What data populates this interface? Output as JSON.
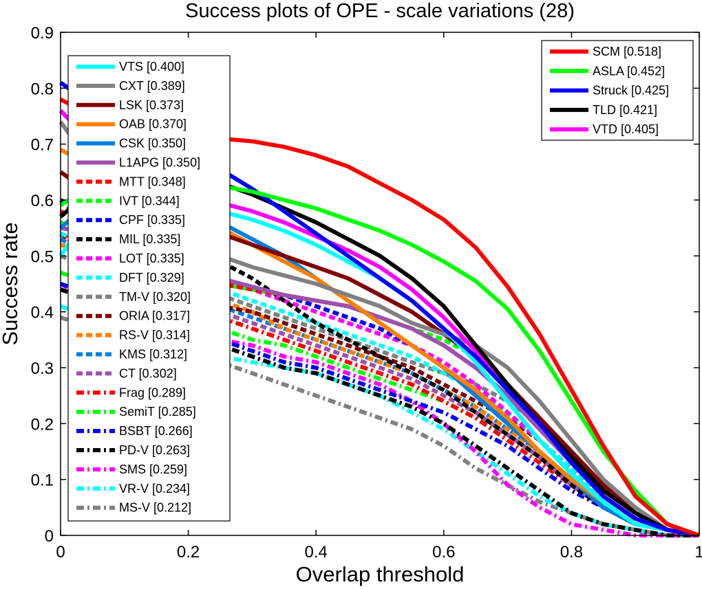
{
  "chart_data": {
    "type": "line",
    "title": "Success plots of OPE - scale variations (28)",
    "xlabel": "Overlap threshold",
    "ylabel": "Success rate",
    "xlim": [
      0,
      1
    ],
    "ylim": [
      0,
      0.9
    ],
    "xticks": [
      "0",
      "0.2",
      "0.4",
      "0.6",
      "0.8",
      "1"
    ],
    "yticks": [
      "0",
      "0.1",
      "0.2",
      "0.3",
      "0.4",
      "0.5",
      "0.6",
      "0.7",
      "0.8",
      "0.9"
    ],
    "x": [
      0,
      0.05,
      0.1,
      0.15,
      0.2,
      0.25,
      0.3,
      0.35,
      0.4,
      0.45,
      0.5,
      0.55,
      0.6,
      0.65,
      0.7,
      0.75,
      0.8,
      0.85,
      0.9,
      0.95,
      1
    ],
    "grid": false,
    "legends": [
      {
        "placement": "top-right",
        "entries": [
          "SCM [0.518]",
          "ASLA [0.452]",
          "Struck [0.425]",
          "TLD [0.421]",
          "VTD [0.405]"
        ]
      },
      {
        "placement": "left",
        "entries": [
          "VTS [0.400]",
          "CXT [0.389]",
          "LSK [0.373]",
          "OAB [0.370]",
          "CSK [0.350]",
          "L1APG [0.350]",
          "MTT [0.348]",
          "IVT [0.344]",
          "CPF [0.335]",
          "MIL [0.335]",
          "LOT [0.335]",
          "DFT [0.329]",
          "TM-V [0.320]",
          "ORIA [0.317]",
          "RS-V [0.314]",
          "KMS [0.312]",
          "CT [0.302]",
          "Frag [0.289]",
          "SemiT [0.285]",
          "BSBT [0.266]",
          "PD-V [0.263]",
          "SMS [0.259]",
          "VR-V [0.234]",
          "MS-V [0.212]"
        ]
      }
    ],
    "series": [
      {
        "name": "SCM [0.518]",
        "color": "#ff0000",
        "style": "solid",
        "values": [
          0.78,
          0.75,
          0.73,
          0.72,
          0.715,
          0.71,
          0.705,
          0.695,
          0.68,
          0.66,
          0.63,
          0.6,
          0.565,
          0.515,
          0.445,
          0.36,
          0.26,
          0.16,
          0.07,
          0.02,
          0.0
        ]
      },
      {
        "name": "ASLA [0.452]",
        "color": "#00ff00",
        "style": "solid",
        "values": [
          0.59,
          0.63,
          0.64,
          0.635,
          0.63,
          0.625,
          0.615,
          0.6,
          0.585,
          0.565,
          0.545,
          0.52,
          0.49,
          0.455,
          0.405,
          0.33,
          0.24,
          0.15,
          0.08,
          0.02,
          0.0
        ]
      },
      {
        "name": "Struck [0.425]",
        "color": "#0000ff",
        "style": "solid",
        "values": [
          0.81,
          0.77,
          0.74,
          0.71,
          0.68,
          0.655,
          0.62,
          0.58,
          0.54,
          0.5,
          0.46,
          0.42,
          0.37,
          0.32,
          0.26,
          0.2,
          0.13,
          0.07,
          0.03,
          0.01,
          0.0
        ]
      },
      {
        "name": "TLD [0.421]",
        "color": "#000000",
        "style": "solid",
        "values": [
          0.57,
          0.62,
          0.64,
          0.645,
          0.64,
          0.63,
          0.61,
          0.585,
          0.56,
          0.53,
          0.5,
          0.46,
          0.41,
          0.34,
          0.27,
          0.2,
          0.14,
          0.08,
          0.04,
          0.01,
          0.0
        ]
      },
      {
        "name": "VTD [0.405]",
        "color": "#ff00ff",
        "style": "solid",
        "values": [
          0.76,
          0.7,
          0.66,
          0.63,
          0.61,
          0.595,
          0.58,
          0.56,
          0.535,
          0.51,
          0.48,
          0.44,
          0.39,
          0.33,
          0.27,
          0.2,
          0.13,
          0.07,
          0.03,
          0.01,
          0.0
        ]
      },
      {
        "name": "VTS [0.400]",
        "color": "#00ffff",
        "style": "solid",
        "values": [
          0.5,
          0.58,
          0.6,
          0.6,
          0.595,
          0.58,
          0.565,
          0.545,
          0.52,
          0.49,
          0.46,
          0.42,
          0.37,
          0.31,
          0.24,
          0.17,
          0.11,
          0.06,
          0.02,
          0.01,
          0.0
        ]
      },
      {
        "name": "CXT [0.389]",
        "color": "#808080",
        "style": "solid",
        "values": [
          0.74,
          0.66,
          0.6,
          0.56,
          0.53,
          0.5,
          0.48,
          0.465,
          0.45,
          0.43,
          0.41,
          0.38,
          0.36,
          0.34,
          0.3,
          0.24,
          0.17,
          0.1,
          0.05,
          0.01,
          0.0
        ]
      },
      {
        "name": "LSK [0.373]",
        "color": "#800000",
        "style": "solid",
        "values": [
          0.65,
          0.61,
          0.58,
          0.56,
          0.55,
          0.54,
          0.52,
          0.5,
          0.48,
          0.46,
          0.43,
          0.4,
          0.36,
          0.32,
          0.27,
          0.21,
          0.15,
          0.09,
          0.04,
          0.01,
          0.0
        ]
      },
      {
        "name": "OAB [0.370]",
        "color": "#ff8000",
        "style": "solid",
        "values": [
          0.69,
          0.66,
          0.63,
          0.6,
          0.58,
          0.55,
          0.52,
          0.49,
          0.46,
          0.42,
          0.38,
          0.34,
          0.3,
          0.26,
          0.21,
          0.15,
          0.1,
          0.06,
          0.03,
          0.01,
          0.0
        ]
      },
      {
        "name": "CSK [0.350]",
        "color": "#0080e0",
        "style": "solid",
        "values": [
          0.55,
          0.6,
          0.61,
          0.6,
          0.585,
          0.56,
          0.53,
          0.5,
          0.46,
          0.42,
          0.38,
          0.34,
          0.3,
          0.25,
          0.2,
          0.15,
          0.1,
          0.05,
          0.02,
          0.01,
          0.0
        ]
      },
      {
        "name": "L1APG [0.350]",
        "color": "#a050b0",
        "style": "solid",
        "values": [
          0.55,
          0.54,
          0.52,
          0.5,
          0.48,
          0.46,
          0.445,
          0.43,
          0.42,
          0.41,
          0.39,
          0.37,
          0.34,
          0.3,
          0.25,
          0.19,
          0.13,
          0.07,
          0.03,
          0.01,
          0.0
        ]
      },
      {
        "name": "MTT [0.348]",
        "color": "#ff0000",
        "style": "dash",
        "values": [
          0.58,
          0.55,
          0.52,
          0.49,
          0.47,
          0.45,
          0.44,
          0.43,
          0.42,
          0.41,
          0.39,
          0.37,
          0.34,
          0.3,
          0.25,
          0.19,
          0.13,
          0.07,
          0.03,
          0.01,
          0.0
        ]
      },
      {
        "name": "IVT [0.344]",
        "color": "#00ff00",
        "style": "dash",
        "values": [
          0.56,
          0.53,
          0.5,
          0.48,
          0.46,
          0.45,
          0.44,
          0.43,
          0.42,
          0.41,
          0.39,
          0.37,
          0.35,
          0.32,
          0.27,
          0.21,
          0.14,
          0.08,
          0.04,
          0.01,
          0.0
        ]
      },
      {
        "name": "CPF [0.335]",
        "color": "#0000ff",
        "style": "dash",
        "values": [
          0.6,
          0.55,
          0.52,
          0.49,
          0.47,
          0.45,
          0.44,
          0.43,
          0.41,
          0.39,
          0.37,
          0.34,
          0.3,
          0.25,
          0.2,
          0.15,
          0.1,
          0.06,
          0.03,
          0.01,
          0.0
        ]
      },
      {
        "name": "MIL [0.335]",
        "color": "#000000",
        "style": "dash",
        "values": [
          0.6,
          0.57,
          0.55,
          0.53,
          0.51,
          0.49,
          0.46,
          0.42,
          0.38,
          0.35,
          0.32,
          0.29,
          0.26,
          0.22,
          0.18,
          0.14,
          0.09,
          0.05,
          0.02,
          0.01,
          0.0
        ]
      },
      {
        "name": "LOT [0.335]",
        "color": "#ff00ff",
        "style": "dash",
        "values": [
          0.58,
          0.55,
          0.52,
          0.5,
          0.48,
          0.46,
          0.44,
          0.42,
          0.4,
          0.38,
          0.36,
          0.34,
          0.31,
          0.27,
          0.22,
          0.17,
          0.11,
          0.06,
          0.03,
          0.01,
          0.0
        ]
      },
      {
        "name": "DFT [0.329]",
        "color": "#00ffff",
        "style": "dash",
        "values": [
          0.54,
          0.52,
          0.5,
          0.48,
          0.46,
          0.44,
          0.42,
          0.4,
          0.38,
          0.36,
          0.34,
          0.32,
          0.29,
          0.26,
          0.22,
          0.17,
          0.12,
          0.07,
          0.03,
          0.01,
          0.0
        ]
      },
      {
        "name": "TM-V [0.320]",
        "color": "#808080",
        "style": "dash",
        "values": [
          0.5,
          0.48,
          0.47,
          0.46,
          0.45,
          0.43,
          0.41,
          0.39,
          0.37,
          0.35,
          0.33,
          0.31,
          0.29,
          0.27,
          0.24,
          0.2,
          0.15,
          0.09,
          0.04,
          0.01,
          0.0
        ]
      },
      {
        "name": "ORIA [0.317]",
        "color": "#800000",
        "style": "dash",
        "values": [
          0.54,
          0.5,
          0.47,
          0.45,
          0.43,
          0.41,
          0.4,
          0.38,
          0.36,
          0.34,
          0.32,
          0.3,
          0.27,
          0.24,
          0.21,
          0.17,
          0.12,
          0.07,
          0.03,
          0.01,
          0.0
        ]
      },
      {
        "name": "RS-V [0.314]",
        "color": "#ff8000",
        "style": "dash",
        "values": [
          0.52,
          0.5,
          0.48,
          0.46,
          0.44,
          0.42,
          0.4,
          0.37,
          0.35,
          0.33,
          0.31,
          0.29,
          0.26,
          0.23,
          0.19,
          0.15,
          0.1,
          0.06,
          0.03,
          0.01,
          0.0
        ]
      },
      {
        "name": "KMS [0.312]",
        "color": "#0080e0",
        "style": "dash",
        "values": [
          0.53,
          0.5,
          0.48,
          0.45,
          0.43,
          0.41,
          0.39,
          0.37,
          0.35,
          0.33,
          0.31,
          0.29,
          0.26,
          0.23,
          0.19,
          0.15,
          0.1,
          0.06,
          0.03,
          0.01,
          0.0
        ]
      },
      {
        "name": "CT [0.302]",
        "color": "#a050b0",
        "style": "dash",
        "values": [
          0.5,
          0.48,
          0.46,
          0.44,
          0.42,
          0.4,
          0.38,
          0.36,
          0.34,
          0.32,
          0.3,
          0.28,
          0.25,
          0.22,
          0.18,
          0.14,
          0.09,
          0.05,
          0.02,
          0.01,
          0.0
        ]
      },
      {
        "name": "Frag [0.289]",
        "color": "#ff0000",
        "style": "dashdot",
        "values": [
          0.54,
          0.5,
          0.46,
          0.43,
          0.41,
          0.39,
          0.37,
          0.35,
          0.33,
          0.31,
          0.29,
          0.27,
          0.24,
          0.21,
          0.17,
          0.13,
          0.09,
          0.05,
          0.02,
          0.01,
          0.0
        ]
      },
      {
        "name": "SemiT [0.285]",
        "color": "#00ff00",
        "style": "dashdot",
        "values": [
          0.47,
          0.45,
          0.43,
          0.41,
          0.39,
          0.37,
          0.35,
          0.34,
          0.32,
          0.3,
          0.28,
          0.26,
          0.24,
          0.21,
          0.18,
          0.14,
          0.1,
          0.06,
          0.03,
          0.01,
          0.0
        ]
      },
      {
        "name": "BSBT [0.266]",
        "color": "#0000ff",
        "style": "dashdot",
        "values": [
          0.45,
          0.43,
          0.41,
          0.39,
          0.37,
          0.35,
          0.33,
          0.31,
          0.3,
          0.28,
          0.26,
          0.24,
          0.22,
          0.19,
          0.16,
          0.12,
          0.08,
          0.05,
          0.02,
          0.01,
          0.0
        ]
      },
      {
        "name": "PD-V [0.263]",
        "color": "#000000",
        "style": "dashdot",
        "values": [
          0.44,
          0.42,
          0.4,
          0.38,
          0.36,
          0.34,
          0.32,
          0.3,
          0.29,
          0.27,
          0.25,
          0.23,
          0.2,
          0.16,
          0.12,
          0.08,
          0.04,
          0.02,
          0.01,
          0.0,
          0.0
        ]
      },
      {
        "name": "SMS [0.259]",
        "color": "#ff00ff",
        "style": "dashdot",
        "values": [
          0.45,
          0.42,
          0.4,
          0.38,
          0.36,
          0.35,
          0.34,
          0.32,
          0.31,
          0.29,
          0.27,
          0.24,
          0.2,
          0.15,
          0.09,
          0.05,
          0.02,
          0.01,
          0.0,
          0.0,
          0.0
        ]
      },
      {
        "name": "VR-V [0.234]",
        "color": "#00ffff",
        "style": "dashdot",
        "values": [
          0.41,
          0.39,
          0.37,
          0.35,
          0.33,
          0.32,
          0.31,
          0.3,
          0.29,
          0.27,
          0.25,
          0.22,
          0.19,
          0.15,
          0.11,
          0.07,
          0.04,
          0.02,
          0.01,
          0.0,
          0.0
        ]
      },
      {
        "name": "MS-V [0.212]",
        "color": "#808080",
        "style": "dashdot",
        "values": [
          0.39,
          0.37,
          0.35,
          0.34,
          0.33,
          0.31,
          0.29,
          0.27,
          0.25,
          0.23,
          0.21,
          0.19,
          0.16,
          0.12,
          0.09,
          0.06,
          0.04,
          0.02,
          0.01,
          0.0,
          0.0
        ]
      }
    ]
  }
}
